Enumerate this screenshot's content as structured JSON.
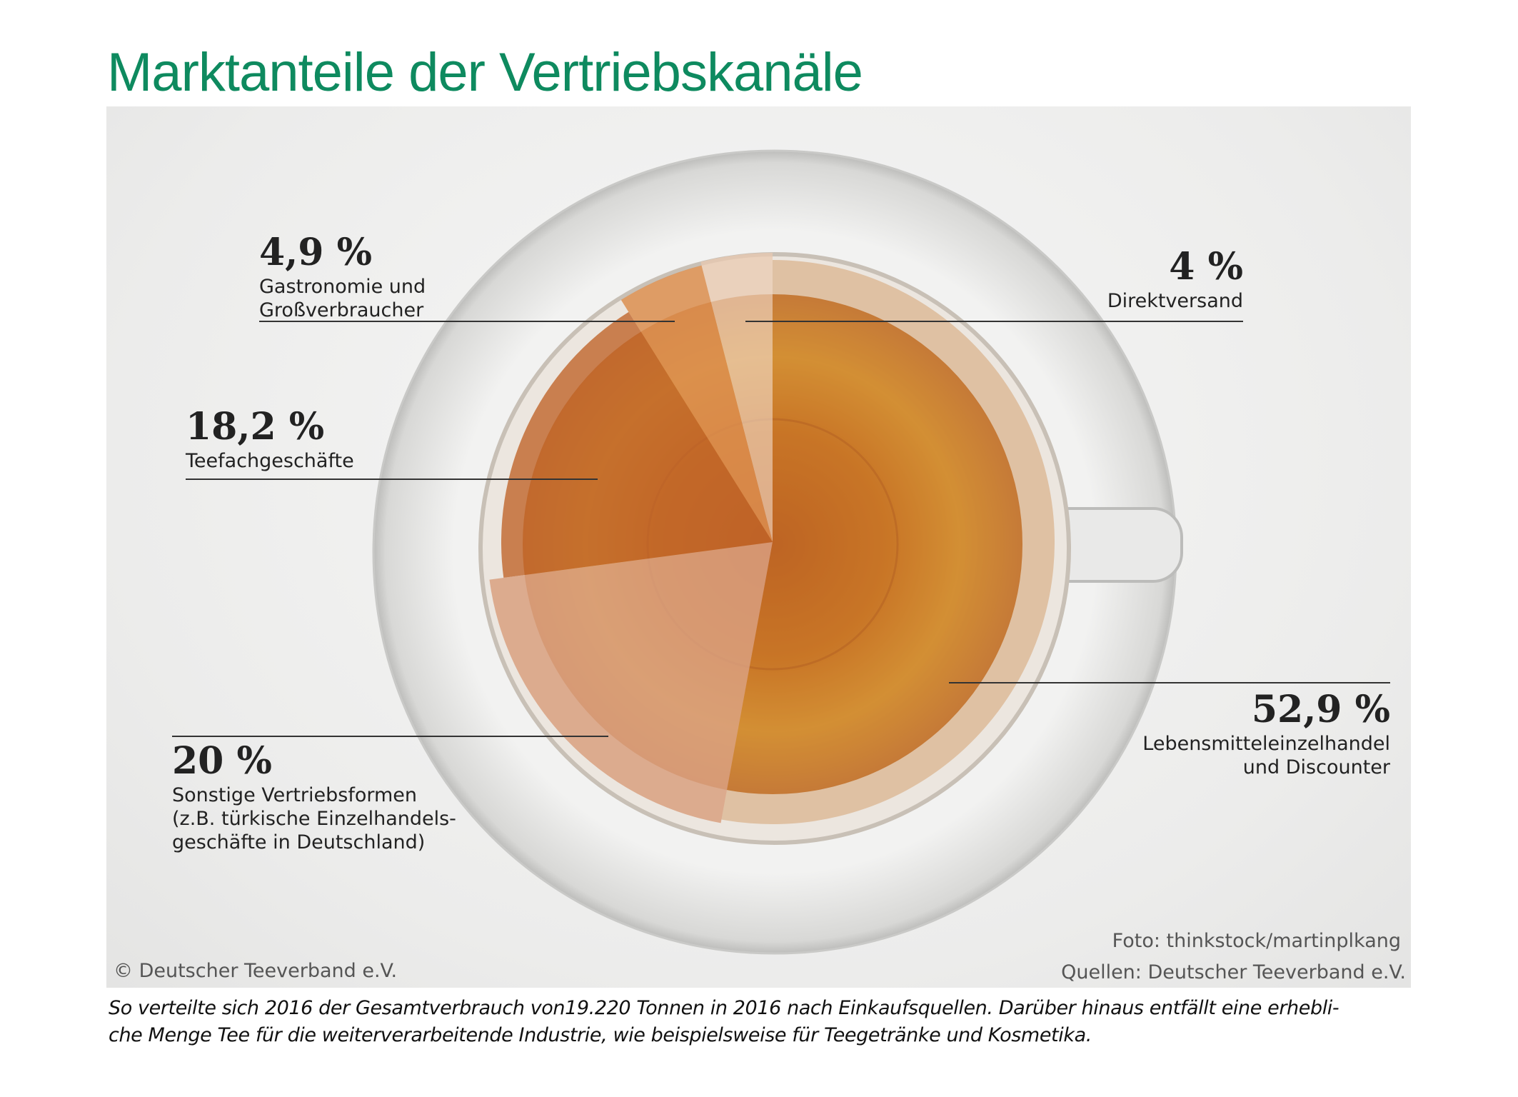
{
  "title": "Marktanteile der Vertriebskanäle",
  "chart_data": {
    "type": "pie",
    "title": "Marktanteile der Vertriebskanäle",
    "start": "12 o'clock, counterclockwise for the small shares",
    "slices": [
      {
        "value": 4,
        "label": "4 %",
        "name": "Direktversand",
        "color": "#e9c9b0"
      },
      {
        "value": 4.9,
        "label": "4,9 %",
        "name": "Gastronomie und Großverbraucher",
        "name_lines": [
          "Gastronomie und",
          "Großverbraucher"
        ],
        "color": "#dc8e50"
      },
      {
        "value": 18.2,
        "label": "18,2 %",
        "name": "Teefachgeschäfte",
        "color": "#c0652a"
      },
      {
        "value": 20,
        "label": "20 %",
        "name": "Sonstige Vertriebsformen (z.B. türkische Einzelhandelsgeschäfte in Deutschland)",
        "name_lines": [
          "Sonstige Vertriebsformen",
          "(z.B. türkische Einzelhandels-",
          "geschäfte in Deutschland)"
        ],
        "color": "#d9a080"
      },
      {
        "value": 52.9,
        "label": "52,9 %",
        "name": "Lebensmitteleinzelhandel und Discounter",
        "name_lines": [
          "Lebensmitteleinzelhandel",
          "und Discounter"
        ],
        "color": "#c97a35"
      }
    ]
  },
  "credits": {
    "copyright": "© Deutscher Teeverband e.V.",
    "photo": "Foto: thinkstock/martinplkang",
    "sources": "Quellen: Deutscher Teeverband e.V."
  },
  "caption": {
    "line1": "So verteilte sich 2016 der Gesamtverbrauch von19.220 Tonnen in 2016 nach Einkaufsquellen. Darüber hinaus entfällt eine erhebli-",
    "line2": "che Menge Tee für die weiterverarbeitende Industrie, wie beispielsweise für Teegetränke und Kosmetika."
  }
}
